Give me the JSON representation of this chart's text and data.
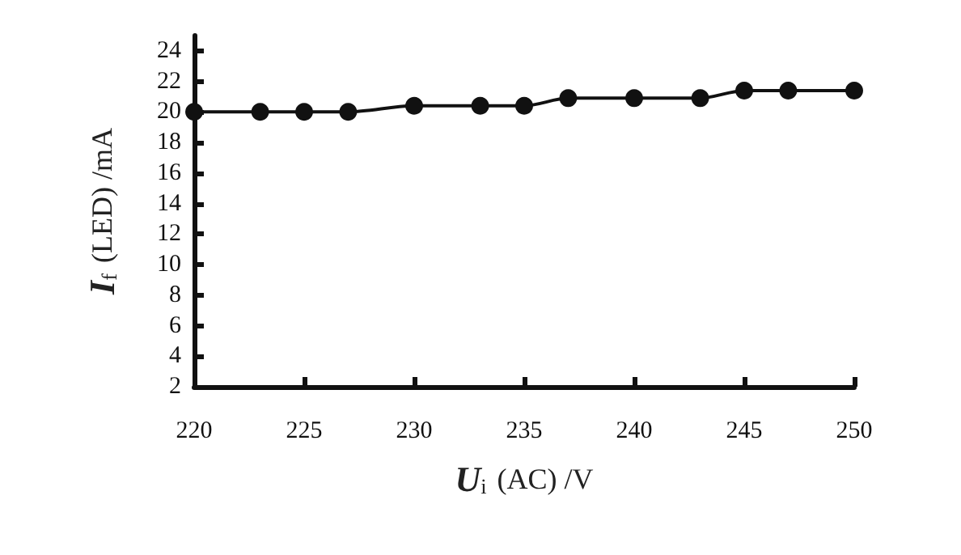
{
  "chart_data": {
    "type": "line",
    "xlabel": "U$_{i}$ (AC) /V",
    "ylabel": "I$_{f}$ (LED) /mA",
    "x": [
      220,
      223,
      225,
      227,
      230,
      233,
      235,
      237,
      240,
      243,
      245,
      247,
      250
    ],
    "series": [
      {
        "color": "#111111",
        "values": [
          20,
          20,
          20,
          20,
          20.4,
          20.4,
          20.4,
          20.9,
          20.9,
          20.9,
          21.4,
          21.4,
          21.4
        ]
      }
    ],
    "xlim": [
      220,
      250
    ],
    "xticks": [
      220,
      225,
      230,
      235,
      240,
      245,
      250
    ],
    "ylim": [
      2,
      25
    ],
    "yticks": [
      2,
      4,
      6,
      8,
      10,
      12,
      14,
      16,
      18,
      20,
      22,
      24
    ],
    "grid": false,
    "marker": "circle",
    "line_style": "solid"
  }
}
